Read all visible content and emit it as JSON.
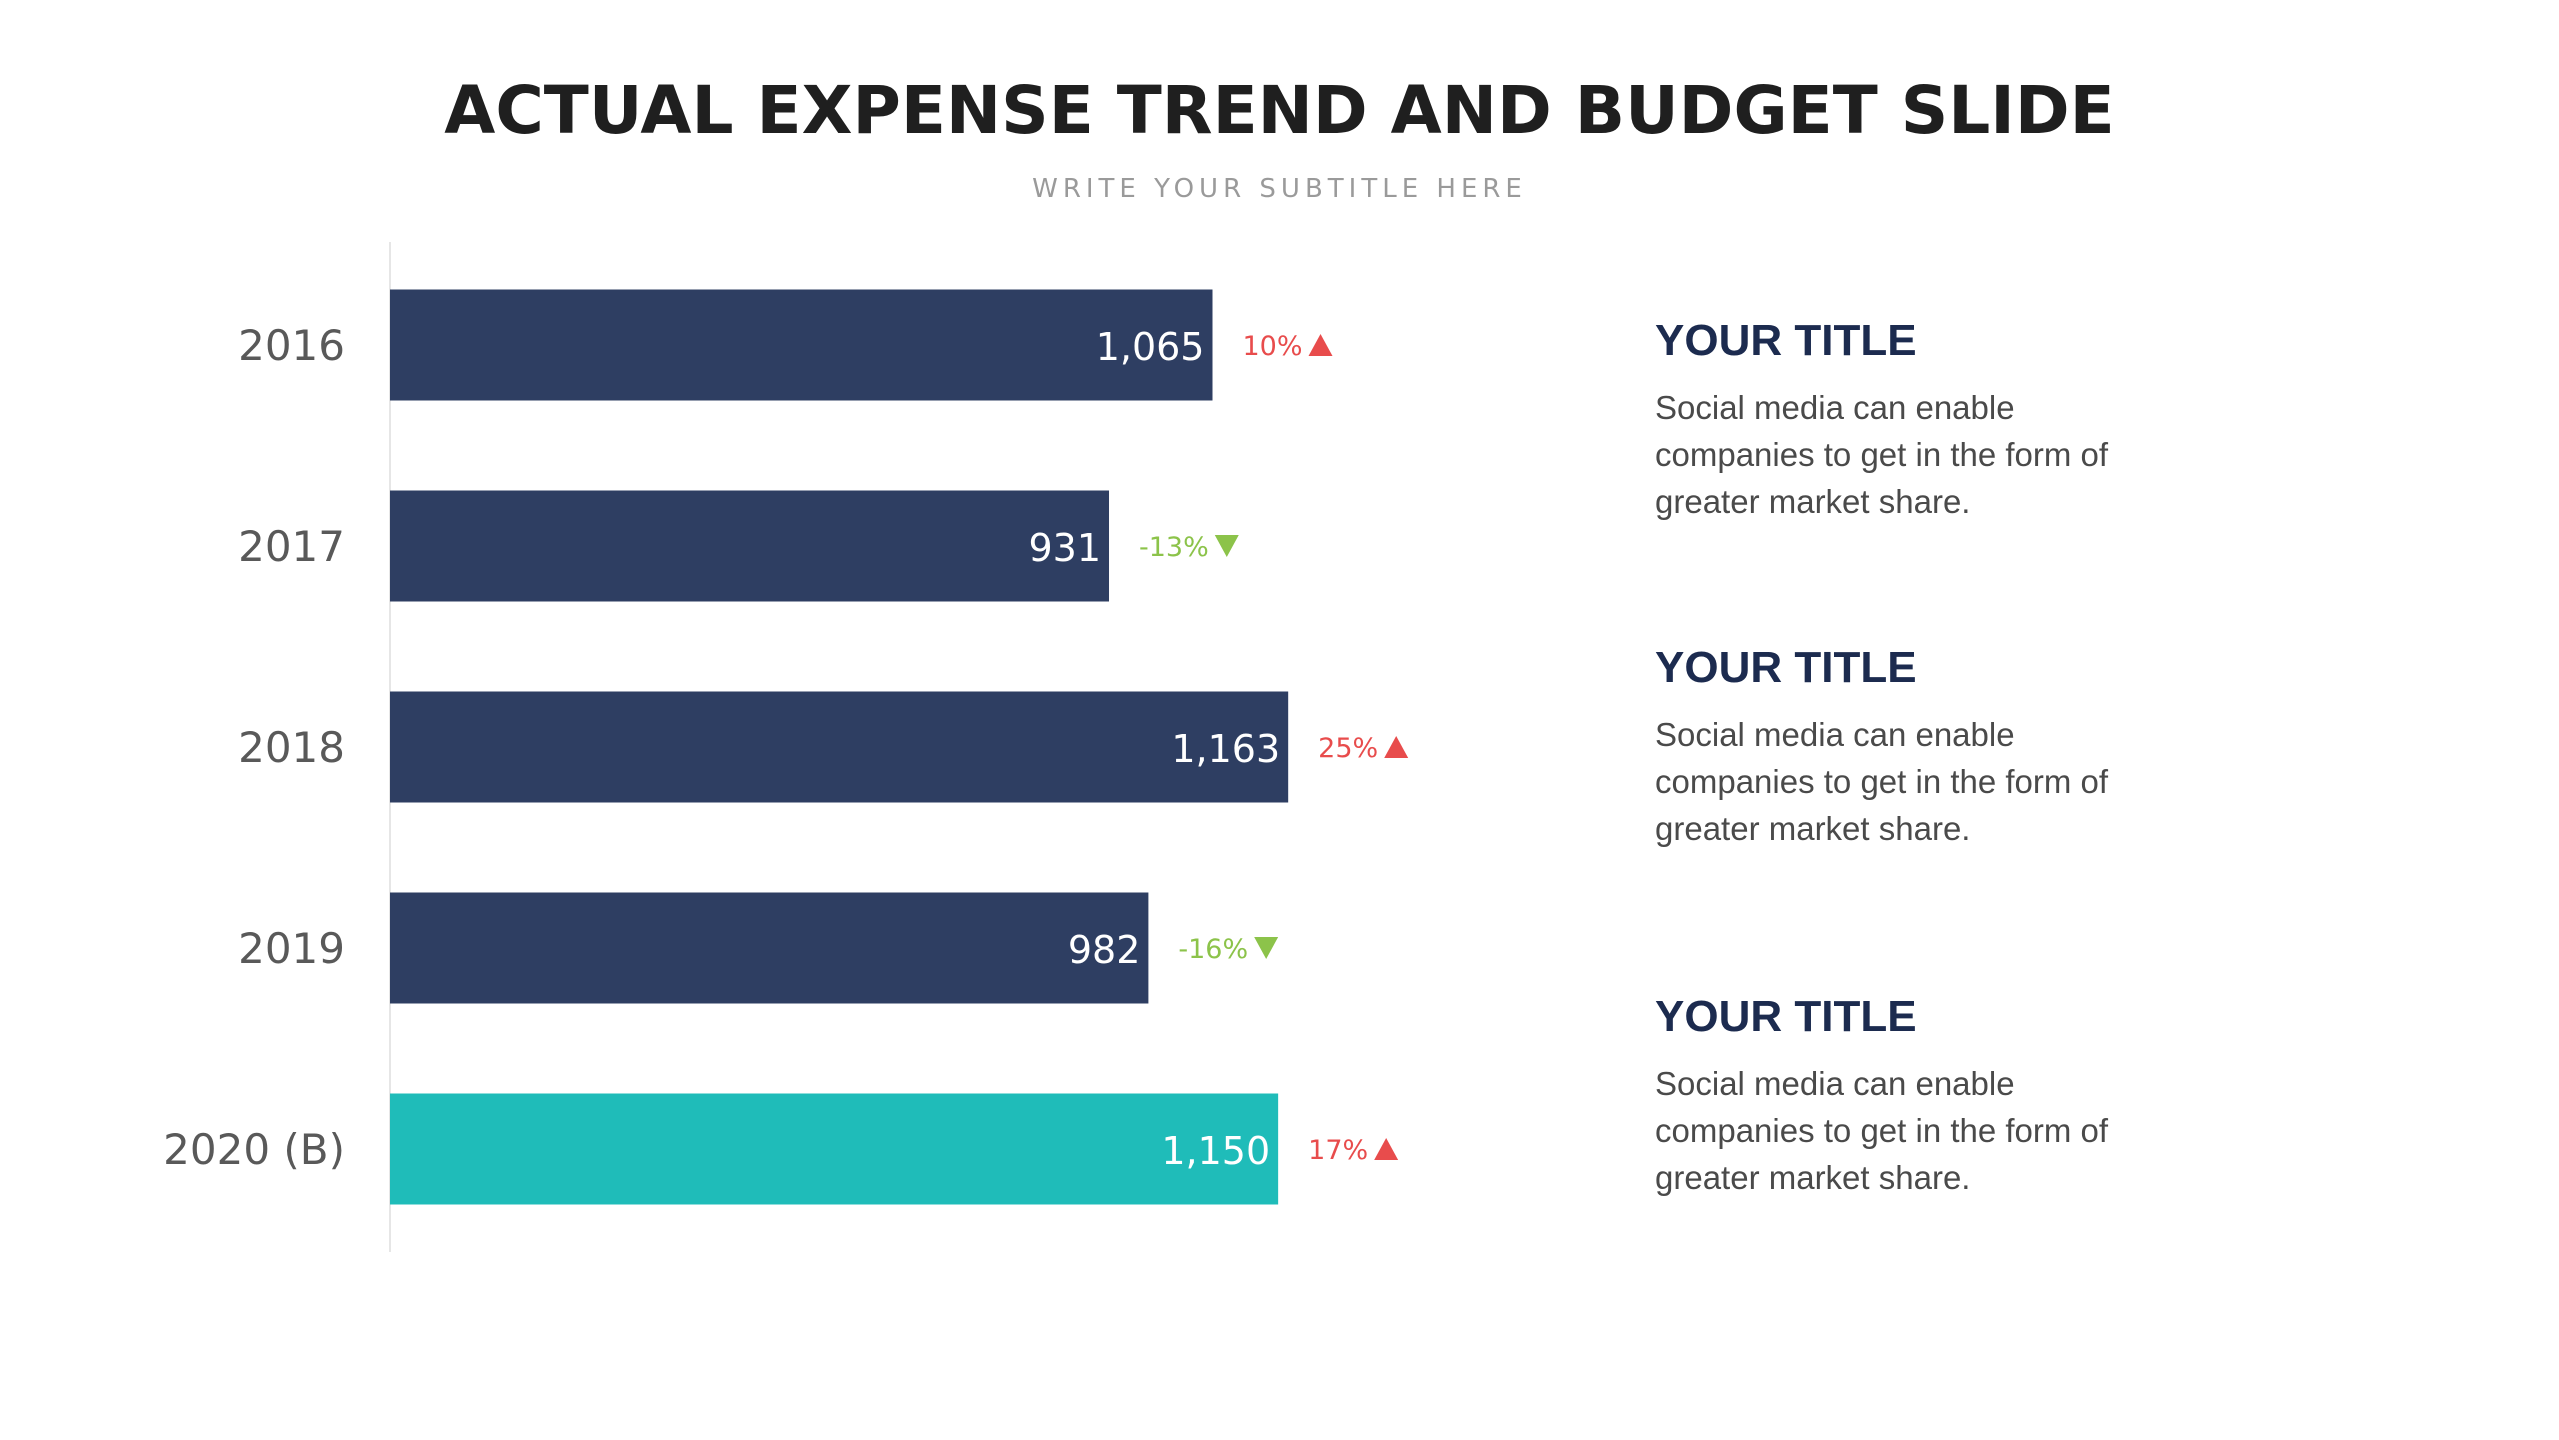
{
  "header": {
    "title": "ACTUAL EXPENSE TREND AND BUDGET SLIDE",
    "subtitle": "WRITE YOUR SUBTITLE HERE"
  },
  "colors": {
    "bar_actual": "#2e3e62",
    "bar_budget": "#1fbcb9",
    "increase": "#e84c4c",
    "decrease": "#8cc34a",
    "category_text": "#595959",
    "side_title": "#1c2b4f"
  },
  "chart_data": {
    "type": "bar",
    "orientation": "horizontal",
    "categories": [
      "2016",
      "2017",
      "2018",
      "2019",
      "2020 (B)"
    ],
    "values": [
      1065,
      931,
      1163,
      982,
      1150
    ],
    "value_labels": [
      "1,065",
      "931",
      "1,163",
      "982",
      "1,150"
    ],
    "changes": [
      {
        "label": "10%",
        "direction": "up"
      },
      {
        "label": "-13%",
        "direction": "down"
      },
      {
        "label": "25%",
        "direction": "up"
      },
      {
        "label": "-16%",
        "direction": "down"
      },
      {
        "label": "17%",
        "direction": "up"
      }
    ],
    "highlight_index": 4,
    "grid": false,
    "xlim": [
      0,
      1500
    ]
  },
  "side_panel": [
    {
      "title": "YOUR TITLE",
      "text": "Social media can enable companies to get in the form of greater market share."
    },
    {
      "title": "YOUR TITLE",
      "text": "Social media can enable companies to get in the form of greater market share."
    },
    {
      "title": "YOUR TITLE",
      "text": "Social media can enable companies to get in the form of greater market share."
    }
  ]
}
